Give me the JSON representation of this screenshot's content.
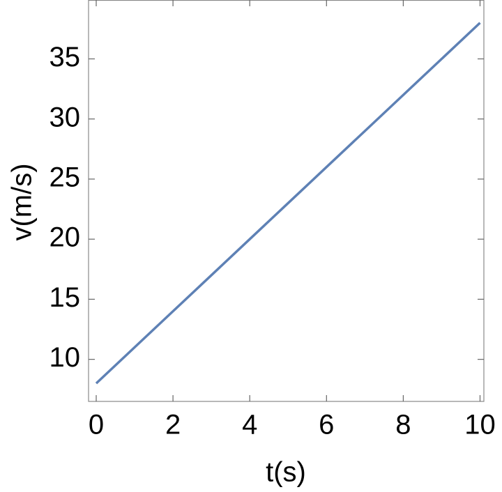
{
  "chart_data": {
    "type": "line",
    "x_label": "t(s)",
    "y_label": "v(m/s)",
    "x": [
      0,
      1,
      2,
      3,
      4,
      5,
      6,
      7,
      8,
      9,
      10
    ],
    "series": [
      {
        "color": "#5e81b5",
        "values": [
          8,
          11,
          14,
          17,
          20,
          23,
          26,
          29,
          32,
          35,
          38
        ]
      }
    ],
    "xlim": [
      -0.2,
      10.1
    ],
    "ylim": [
      6.5,
      39.9
    ],
    "xticks": [
      0,
      2,
      4,
      6,
      8,
      10
    ],
    "yticks": [
      10,
      15,
      20,
      25,
      30,
      35
    ]
  }
}
